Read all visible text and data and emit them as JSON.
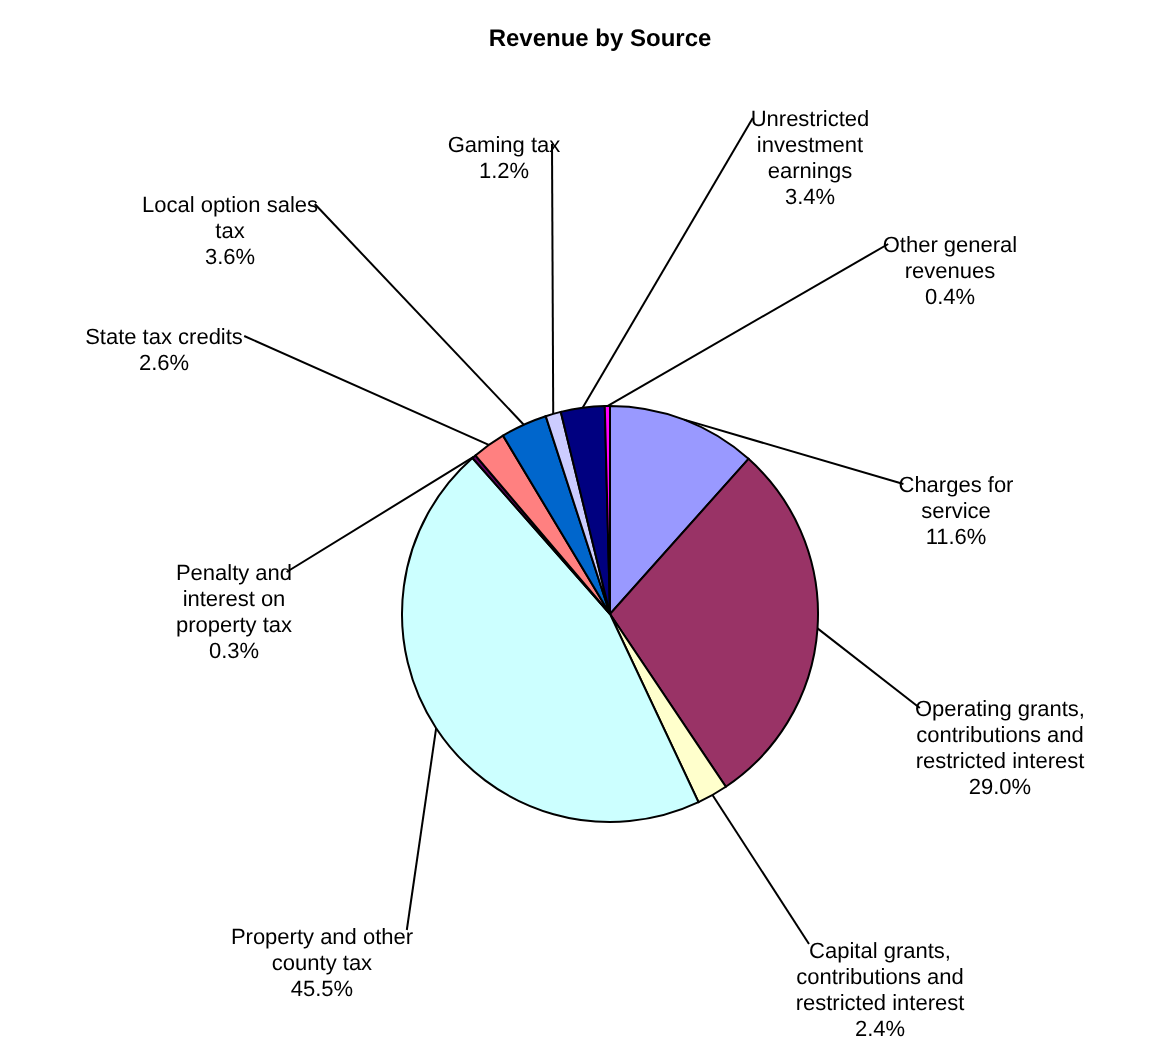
{
  "chart_data": {
    "type": "pie",
    "title": "Revenue by Source",
    "categories": [
      "Charges for service",
      "Operating grants, contributions and restricted interest",
      "Capital grants, contributions and restricted interest",
      "Property and other county tax",
      "Penalty and interest on property tax",
      "State tax credits",
      "Local option sales tax",
      "Gaming tax",
      "Unrestricted investment earnings",
      "Other general revenues"
    ],
    "values": [
      11.6,
      29.0,
      2.4,
      45.5,
      0.3,
      2.6,
      3.6,
      1.2,
      3.4,
      0.4
    ],
    "value_labels": [
      "11.6%",
      "29.0%",
      "2.4%",
      "45.5%",
      "0.3%",
      "2.6%",
      "3.6%",
      "1.2%",
      "3.4%",
      "0.4%"
    ],
    "colors": [
      "#9999ff",
      "#993366",
      "#ffffcc",
      "#ccffff",
      "#660066",
      "#ff8080",
      "#0066cc",
      "#ccccff",
      "#000080",
      "#ff00ff"
    ]
  }
}
